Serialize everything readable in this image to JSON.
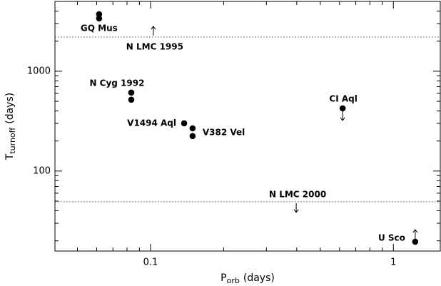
{
  "chart_data": {
    "type": "scatter",
    "xlabel": {
      "symbol": "P",
      "subscript": "orb",
      "unit": "(days)"
    },
    "ylabel": {
      "symbol": "T",
      "subscript": "turnoff",
      "unit": "(days)"
    },
    "xscale": "log",
    "yscale": "log",
    "xlim": [
      0.0404,
      1.56
    ],
    "ylim": [
      15.8,
      5000
    ],
    "xticks": [
      0.1,
      1
    ],
    "yticks": [
      100,
      1000
    ],
    "xminorticks": [
      0.05,
      0.06,
      0.07,
      0.08,
      0.09,
      0.2,
      0.3,
      0.4,
      0.5,
      0.6,
      0.7,
      0.8,
      0.9
    ],
    "yminorticks": [
      20,
      30,
      40,
      50,
      60,
      70,
      80,
      90,
      200,
      300,
      400,
      500,
      600,
      700,
      800,
      900,
      2000,
      3000,
      4000
    ],
    "color": "#000000",
    "series": [
      {
        "name": "GQ Mus",
        "x": 0.0614,
        "y": [
          3727,
          3380
        ]
      },
      {
        "name": "N Cyg 1992",
        "x": 0.0833,
        "y": [
          611,
          518
        ]
      },
      {
        "name": "V1494 Aql",
        "x": 0.1375,
        "y": [
          301
        ]
      },
      {
        "name": "V382 Vel",
        "x": 0.149,
        "y": [
          268,
          224
        ]
      },
      {
        "name": "CI Aql",
        "x": 0.618,
        "y": [
          425
        ],
        "limit": "upper"
      },
      {
        "name": "U Sco",
        "x": 1.23,
        "y": [
          19.6
        ],
        "limit": "lower"
      }
    ],
    "reference_lines": [
      {
        "label": "N LMC 1995",
        "y": 2200,
        "arrow_x": 0.1027,
        "limit": "lower"
      },
      {
        "label": "N LMC 2000",
        "y": 49.3,
        "arrow_x": 0.398,
        "limit": "upper"
      }
    ]
  }
}
